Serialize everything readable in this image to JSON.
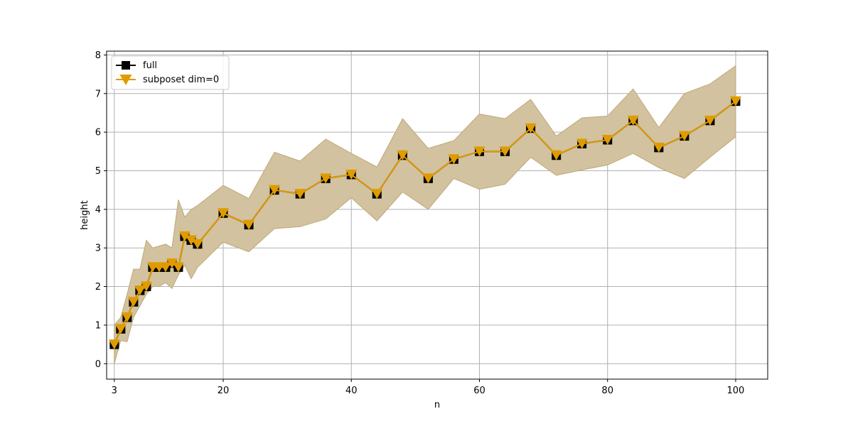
{
  "chart_data": {
    "type": "line",
    "title": "",
    "xlabel": "n",
    "ylabel": "height",
    "xlim": [
      1.8,
      105
    ],
    "ylim": [
      -0.4,
      8.1
    ],
    "xticks": [
      3,
      20,
      40,
      60,
      80,
      100
    ],
    "yticks": [
      0,
      1,
      2,
      3,
      4,
      5,
      6,
      7,
      8
    ],
    "grid": true,
    "legend_position": "top-left",
    "band": {
      "x": [
        3,
        4,
        5,
        6,
        7,
        8,
        9,
        10,
        11,
        12,
        13,
        14,
        15,
        16,
        20,
        24,
        28,
        32,
        36,
        40,
        44,
        48,
        52,
        56,
        60,
        64,
        68,
        72,
        76,
        80,
        84,
        88,
        92,
        96,
        100
      ],
      "lower": [
        0.0,
        0.6,
        0.57,
        1.2,
        1.5,
        1.8,
        2.0,
        2.0,
        2.1,
        1.95,
        2.3,
        2.55,
        2.2,
        2.5,
        3.15,
        2.9,
        3.5,
        3.55,
        3.75,
        4.3,
        3.7,
        4.45,
        4.0,
        4.8,
        4.52,
        4.65,
        5.35,
        4.88,
        5.02,
        5.15,
        5.45,
        5.08,
        4.8,
        5.35,
        5.88
      ],
      "upper": [
        1.0,
        1.2,
        1.8,
        2.45,
        2.45,
        3.2,
        3.0,
        3.05,
        3.1,
        3.0,
        4.25,
        3.8,
        4.0,
        4.1,
        4.62,
        4.28,
        5.48,
        5.25,
        5.82,
        5.45,
        5.1,
        6.35,
        5.58,
        5.78,
        6.47,
        6.35,
        6.85,
        5.9,
        6.37,
        6.42,
        7.12,
        6.12,
        7.0,
        7.25,
        7.72
      ]
    },
    "series": [
      {
        "name": "full",
        "marker": "square",
        "color": "#000000",
        "x": [
          3,
          4,
          5,
          6,
          7,
          8,
          9,
          10,
          11,
          12,
          13,
          14,
          15,
          16,
          20,
          24,
          28,
          32,
          36,
          40,
          44,
          48,
          52,
          56,
          60,
          64,
          68,
          72,
          76,
          80,
          84,
          88,
          92,
          96,
          100
        ],
        "y": [
          0.5,
          0.9,
          1.2,
          1.6,
          1.9,
          2.0,
          2.5,
          2.5,
          2.5,
          2.6,
          2.5,
          3.3,
          3.2,
          3.1,
          3.9,
          3.6,
          4.5,
          4.4,
          4.8,
          4.9,
          4.4,
          5.4,
          4.8,
          5.3,
          5.5,
          5.5,
          6.1,
          5.4,
          5.7,
          5.8,
          6.3,
          5.6,
          5.9,
          6.3,
          6.8
        ]
      },
      {
        "name": "subposet dim=0",
        "marker": "triangle-down",
        "color": "#e09b00",
        "x": [
          3,
          4,
          5,
          6,
          7,
          8,
          9,
          10,
          11,
          12,
          13,
          14,
          15,
          16,
          20,
          24,
          28,
          32,
          36,
          40,
          44,
          48,
          52,
          56,
          60,
          64,
          68,
          72,
          76,
          80,
          84,
          88,
          92,
          96,
          100
        ],
        "y": [
          0.5,
          0.9,
          1.2,
          1.6,
          1.9,
          2.0,
          2.5,
          2.5,
          2.5,
          2.6,
          2.5,
          3.3,
          3.2,
          3.1,
          3.9,
          3.6,
          4.5,
          4.4,
          4.8,
          4.9,
          4.4,
          5.4,
          4.8,
          5.3,
          5.5,
          5.5,
          6.1,
          5.4,
          5.7,
          5.8,
          6.3,
          5.6,
          5.9,
          6.3,
          6.8
        ]
      }
    ],
    "colors": {
      "band_fill": "#d2c29f",
      "band_edge": "#bfa878",
      "grid": "#b0b0b0"
    }
  }
}
